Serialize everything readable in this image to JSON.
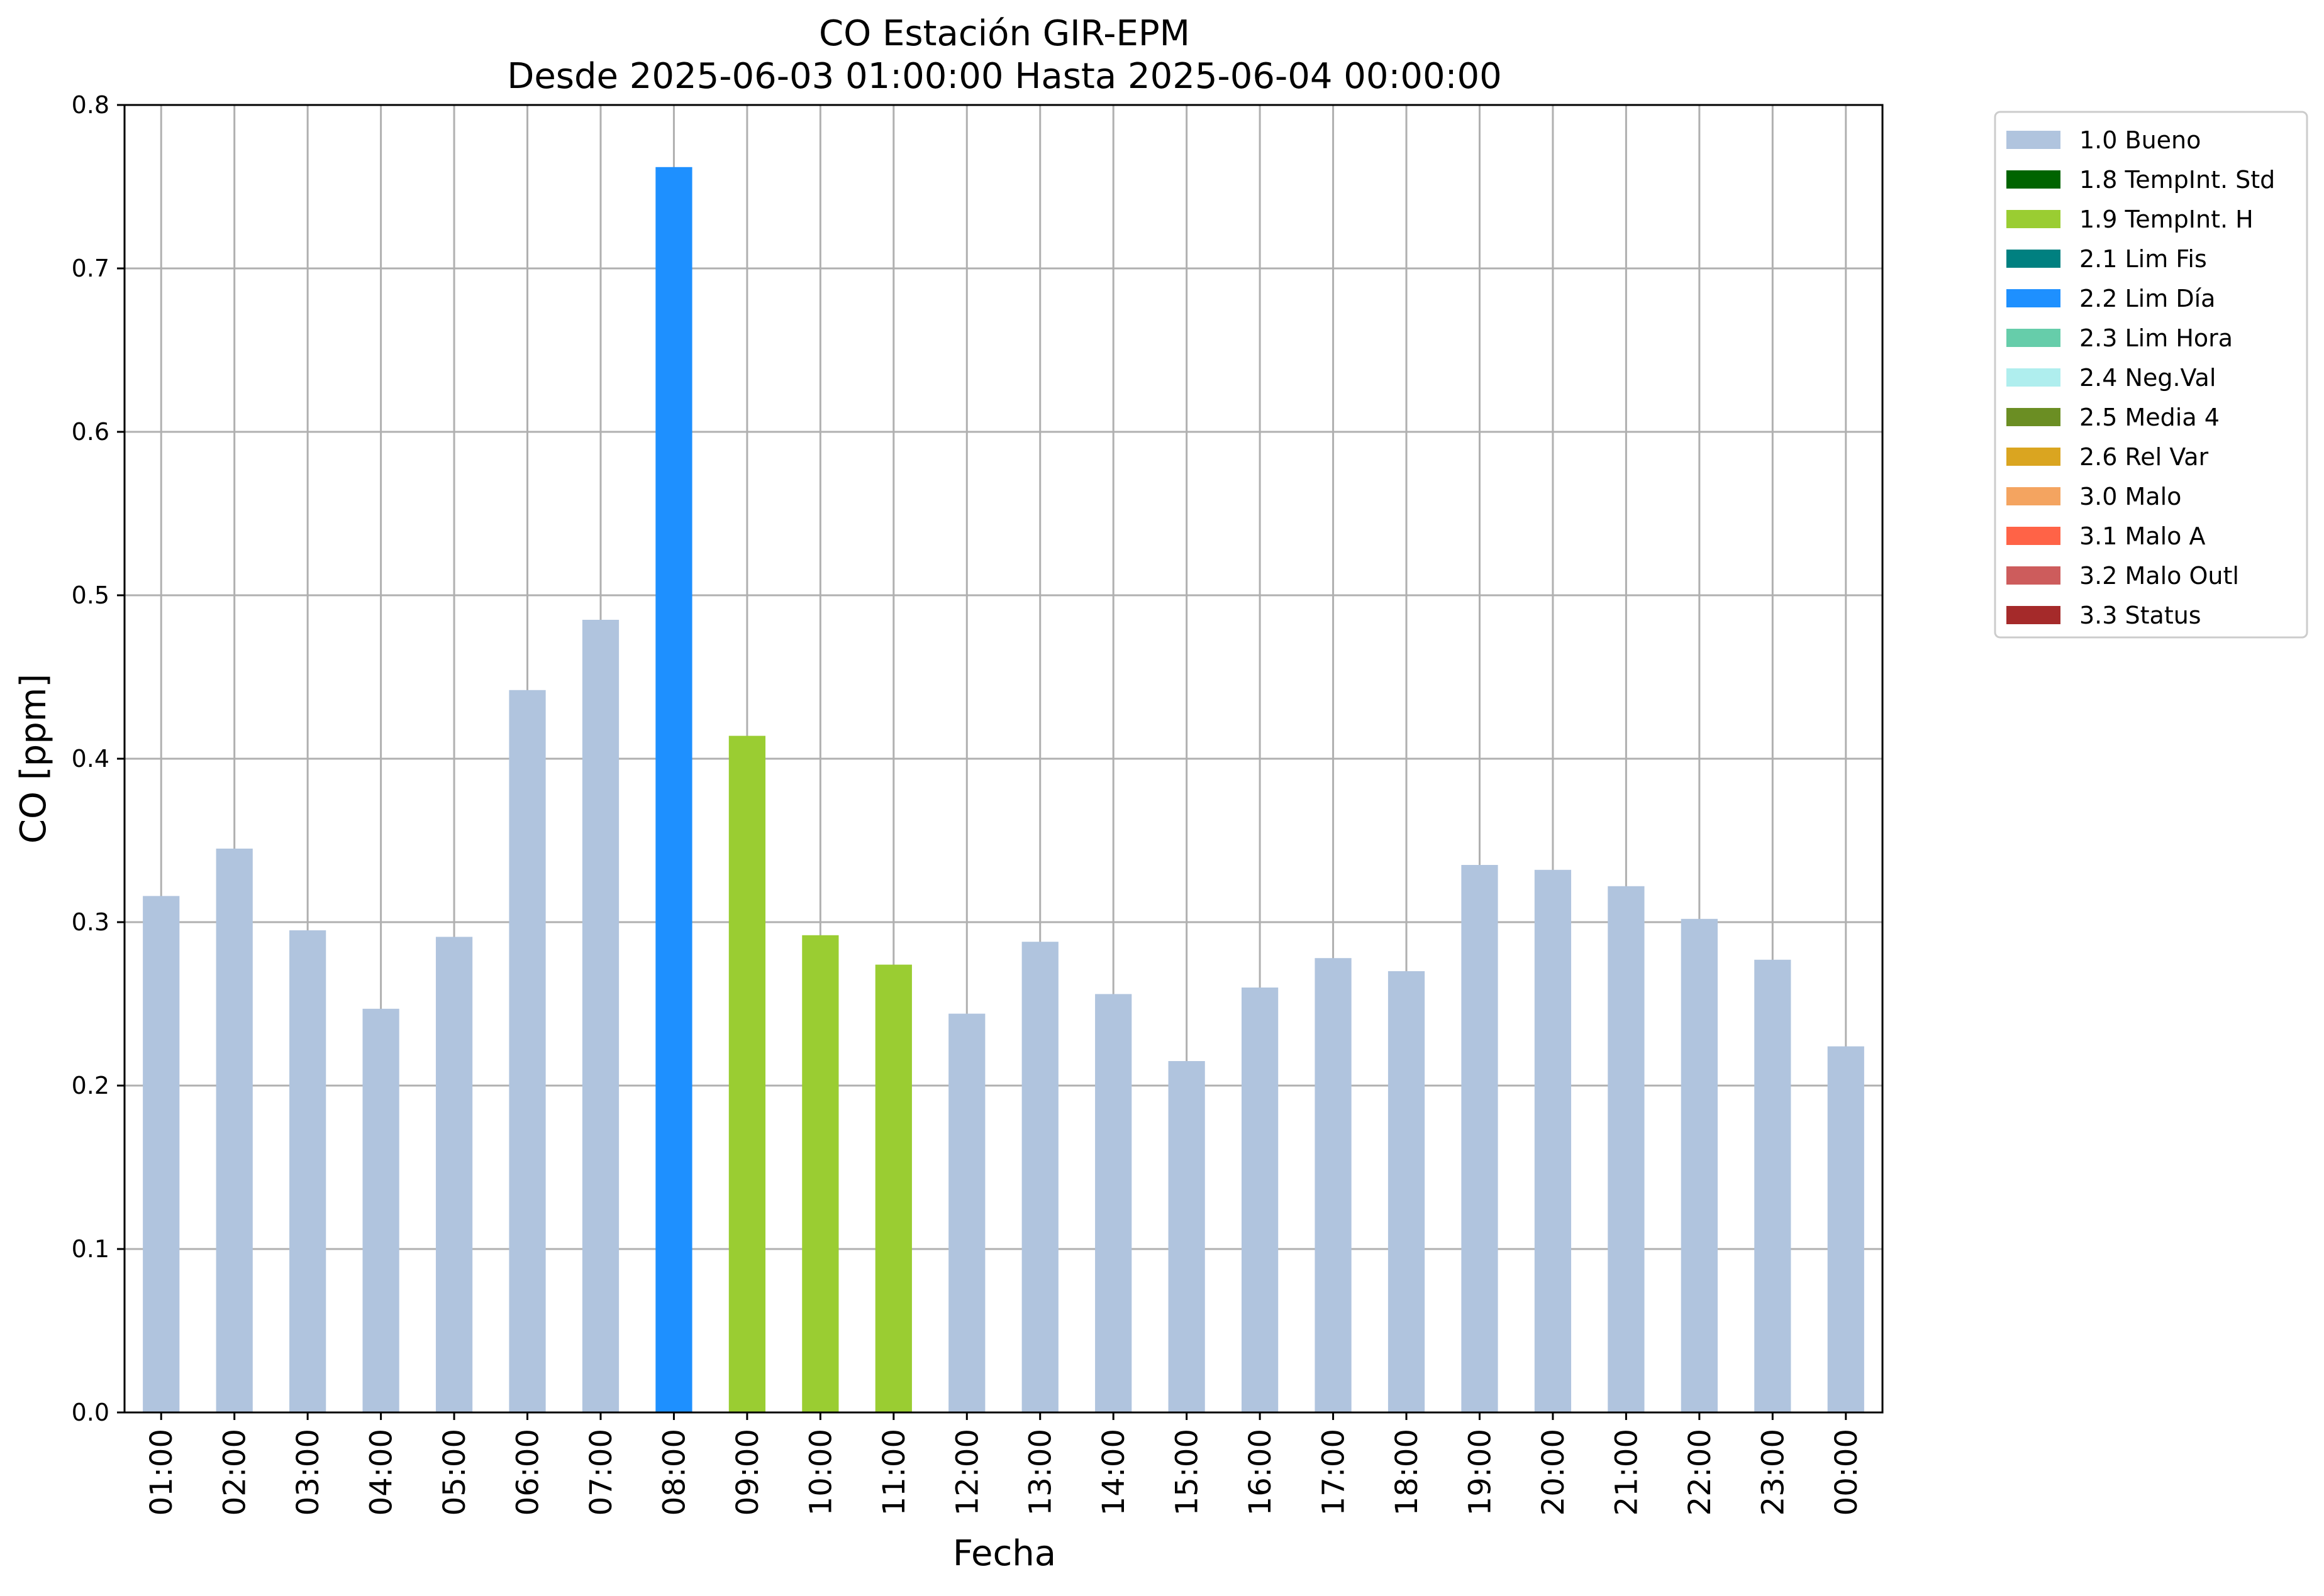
{
  "chart_data": {
    "type": "bar",
    "title": "CO Estación GIR-EPM",
    "subtitle": "Desde 2025-06-03 01:00:00 Hasta 2025-06-04 00:00:00",
    "xlabel": "Fecha",
    "ylabel": "CO [ppm]",
    "ylim": [
      0,
      0.8
    ],
    "yticks": [
      "0.0",
      "0.1",
      "0.2",
      "0.3",
      "0.4",
      "0.5",
      "0.6",
      "0.7",
      "0.8"
    ],
    "grid": true,
    "legend_position": "outside-top-right",
    "categories": [
      "01:00",
      "02:00",
      "03:00",
      "04:00",
      "05:00",
      "06:00",
      "07:00",
      "08:00",
      "09:00",
      "10:00",
      "11:00",
      "12:00",
      "13:00",
      "14:00",
      "15:00",
      "16:00",
      "17:00",
      "18:00",
      "19:00",
      "20:00",
      "21:00",
      "22:00",
      "23:00",
      "00:00"
    ],
    "values": [
      0.316,
      0.345,
      0.295,
      0.247,
      0.291,
      0.442,
      0.485,
      0.762,
      0.414,
      0.292,
      0.274,
      0.244,
      0.288,
      0.256,
      0.215,
      0.26,
      0.278,
      0.27,
      0.335,
      0.332,
      0.322,
      0.302,
      0.277,
      0.224
    ],
    "flags": [
      "1.0 Bueno",
      "1.0 Bueno",
      "1.0 Bueno",
      "1.0 Bueno",
      "1.0 Bueno",
      "1.0 Bueno",
      "1.0 Bueno",
      "2.2 Lim Día",
      "1.9 TempInt. H",
      "1.9 TempInt. H",
      "1.9 TempInt. H",
      "1.0 Bueno",
      "1.0 Bueno",
      "1.0 Bueno",
      "1.0 Bueno",
      "1.0 Bueno",
      "1.0 Bueno",
      "1.0 Bueno",
      "1.0 Bueno",
      "1.0 Bueno",
      "1.0 Bueno",
      "1.0 Bueno",
      "1.0 Bueno",
      "1.0 Bueno"
    ],
    "legend": [
      {
        "label": "1.0 Bueno",
        "color": "#b0c4de"
      },
      {
        "label": "1.8 TempInt. Std",
        "color": "#006400"
      },
      {
        "label": "1.9 TempInt. H",
        "color": "#9acd32"
      },
      {
        "label": "2.1 Lim Fis",
        "color": "#008080"
      },
      {
        "label": "2.2 Lim Día",
        "color": "#1e90ff"
      },
      {
        "label": "2.3 Lim Hora",
        "color": "#66cdaa"
      },
      {
        "label": "2.4 Neg.Val",
        "color": "#afeeee"
      },
      {
        "label": "2.5 Media 4",
        "color": "#6b8e23"
      },
      {
        "label": "2.6 Rel Var",
        "color": "#daa520"
      },
      {
        "label": "3.0 Malo",
        "color": "#f4a460"
      },
      {
        "label": "3.1 Malo A",
        "color": "#ff6347"
      },
      {
        "label": "3.2 Malo Outl",
        "color": "#cd5c5c"
      },
      {
        "label": "3.3 Status",
        "color": "#a52a2a"
      }
    ]
  }
}
